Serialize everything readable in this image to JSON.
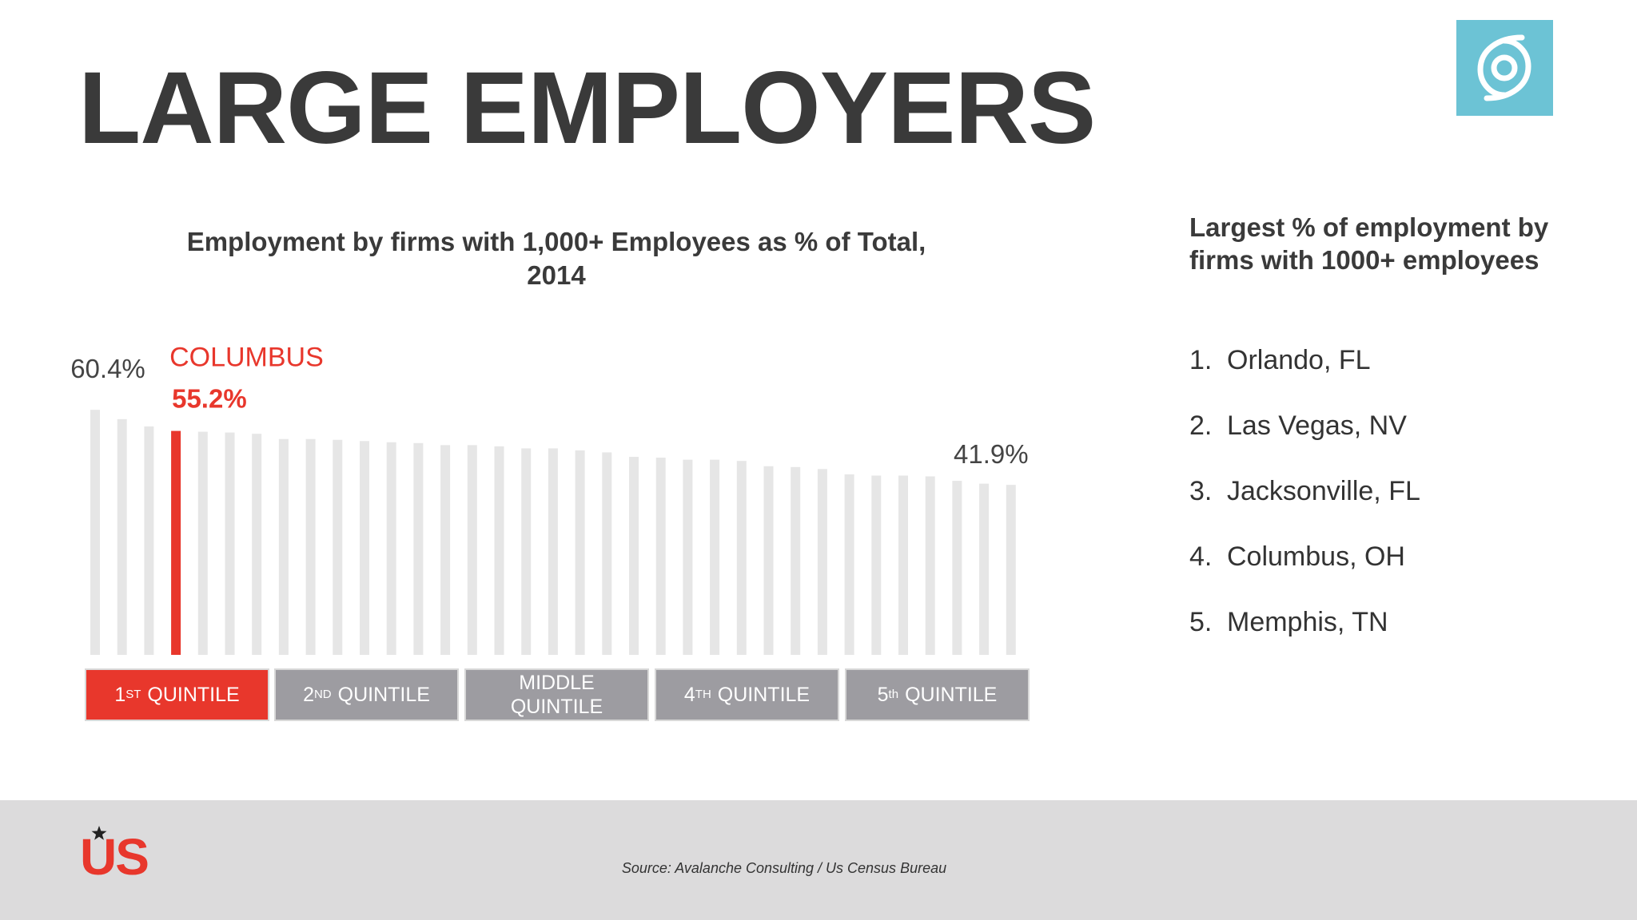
{
  "title": "LARGE EMPLOYERS",
  "chart_data": {
    "type": "bar",
    "title": "Employment by firms with 1,000+ Employees as % of Total, 2014",
    "annotation": "COLUMBUS",
    "values": [
      60.4,
      58.1,
      56.3,
      55.2,
      55.0,
      54.8,
      54.5,
      53.2,
      53.2,
      53.0,
      52.7,
      52.4,
      52.2,
      51.7,
      51.7,
      51.4,
      50.9,
      50.9,
      50.4,
      49.9,
      48.8,
      48.6,
      48.1,
      48.1,
      47.8,
      46.5,
      46.3,
      45.8,
      44.5,
      44.2,
      44.2,
      44.0,
      42.9,
      42.2,
      41.9
    ],
    "value_labels": [
      "60.4%",
      null,
      null,
      "55.2%",
      null,
      null,
      null,
      null,
      null,
      null,
      null,
      null,
      null,
      null,
      null,
      null,
      null,
      null,
      null,
      null,
      null,
      null,
      null,
      null,
      null,
      null,
      null,
      null,
      null,
      null,
      null,
      null,
      null,
      null,
      "41.9%"
    ],
    "colors": [
      "#e6e6e6",
      "#e6e6e6",
      "#e6e6e6",
      "#e8372c",
      "#e6e6e6",
      "#e6e6e6",
      "#e6e6e6",
      "#e6e6e6",
      "#e6e6e6",
      "#e6e6e6",
      "#e6e6e6",
      "#e6e6e6",
      "#e6e6e6",
      "#e6e6e6",
      "#e6e6e6",
      "#e6e6e6",
      "#e6e6e6",
      "#e6e6e6",
      "#e6e6e6",
      "#e6e6e6",
      "#e6e6e6",
      "#e6e6e6",
      "#e6e6e6",
      "#e6e6e6",
      "#e6e6e6",
      "#e6e6e6",
      "#e6e6e6",
      "#e6e6e6",
      "#e6e6e6",
      "#e6e6e6",
      "#e6e6e6",
      "#e6e6e6",
      "#e6e6e6",
      "#e6e6e6",
      "#e6e6e6"
    ],
    "quintiles": [
      {
        "number": "1",
        "suffix": "ST",
        "label": "QUINTILE",
        "color": "#e8372c"
      },
      {
        "number": "2",
        "suffix": "ND",
        "label": "QUINTILE",
        "color": "#9d9ca1"
      },
      {
        "label": "MIDDLE QUINTILE",
        "color": "#9d9ca1"
      },
      {
        "number": "4",
        "suffix": "TH",
        "label": "QUINTILE",
        "color": "#9d9ca1"
      },
      {
        "number": "5",
        "suffix": "th",
        "label": "QUINTILE",
        "color": "#9d9ca1"
      }
    ]
  },
  "side_panel": {
    "heading": "Largest % of employment by firms with 1000+ employees",
    "items": [
      {
        "rank": "1.",
        "text": "Orlando, FL"
      },
      {
        "rank": "2.",
        "text": "Las Vegas, NV"
      },
      {
        "rank": "3.",
        "text": "Jacksonville, FL"
      },
      {
        "rank": "4.",
        "text": "Columbus, OH"
      },
      {
        "rank": "5.",
        "text": "Memphis, TN"
      }
    ]
  },
  "footer": {
    "logo": "US",
    "source": "Source: Avalanche Consulting / Us Census Bureau"
  }
}
